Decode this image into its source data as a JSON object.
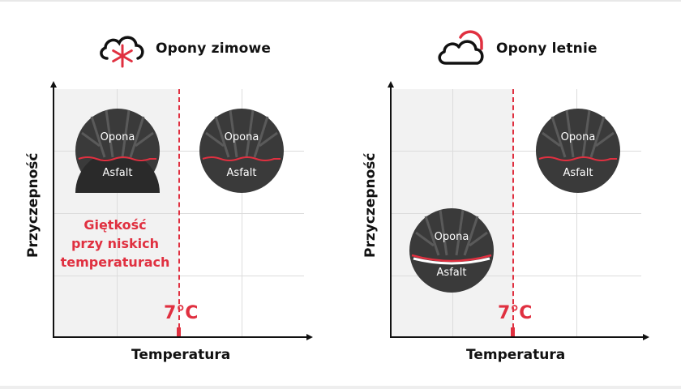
{
  "left_panel": {
    "title": "Opony zimowe",
    "icon": "snow-cloud-icon",
    "ylabel": "Przyczepność",
    "xlabel": "Temperatura",
    "threshold_label": "7°C",
    "note_lines": [
      "Giętkość",
      "przy niskich",
      "temperaturach"
    ],
    "tires": [
      {
        "top": "Opona",
        "bottom": "Asfalt"
      },
      {
        "top": "Opona",
        "bottom": "Asfalt"
      }
    ]
  },
  "right_panel": {
    "title": "Opony letnie",
    "icon": "sun-cloud-icon",
    "ylabel": "Przyczepność",
    "xlabel": "Temperatura",
    "threshold_label": "7°C",
    "tires": [
      {
        "top": "Opona",
        "bottom": "Asfalt"
      },
      {
        "top": "Opona",
        "bottom": "Asfalt"
      }
    ]
  },
  "colors": {
    "accent": "#e03040",
    "tire": "#3a3a3a",
    "text": "#111111",
    "plot_bg": "#f2f2f2"
  }
}
